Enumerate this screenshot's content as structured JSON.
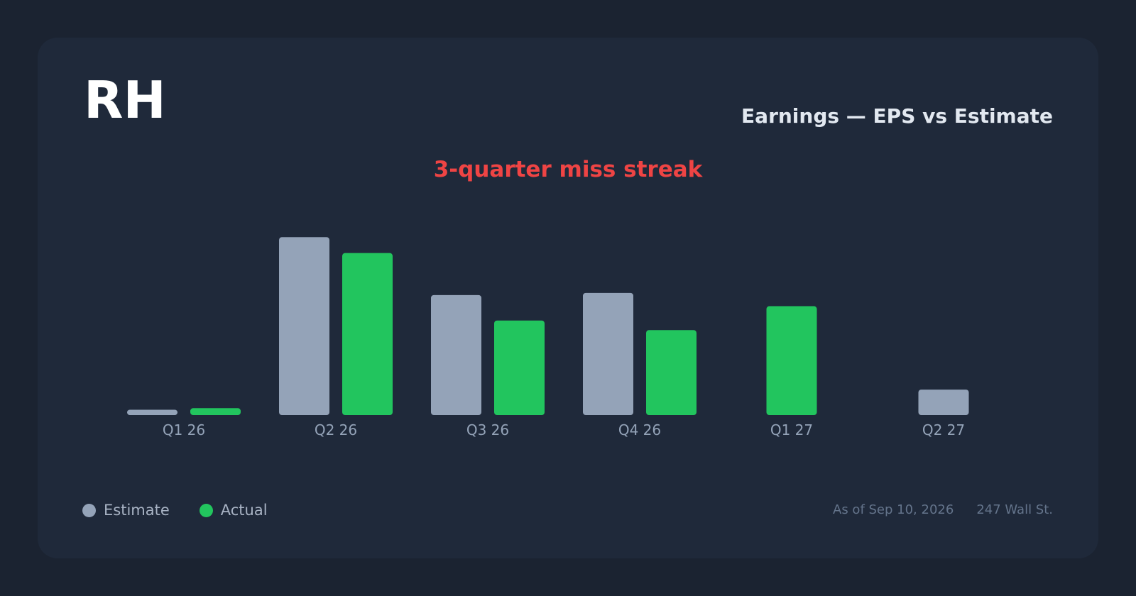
{
  "header": {
    "ticker": "RH",
    "title": "Earnings — EPS vs Estimate",
    "annotation": "3-quarter miss streak"
  },
  "legend": {
    "estimate_label": "Estimate",
    "actual_label": "Actual"
  },
  "footer": {
    "as_of": "As of Sep 10, 2026",
    "source": "247 Wall St."
  },
  "colors": {
    "estimate": "#94a3b8",
    "actual": "#22c55e",
    "annotation": "#ef4444"
  },
  "chart_data": {
    "type": "bar",
    "title": "Earnings — EPS vs Estimate",
    "xlabel": "",
    "ylabel": "",
    "categories": [
      "Q1 26",
      "Q2 26",
      "Q3 26",
      "Q4 26",
      "Q1 27",
      "Q2 27"
    ],
    "series": [
      {
        "name": "Estimate",
        "values": [
          0.1,
          3.35,
          2.26,
          2.3,
          null,
          0.48
        ]
      },
      {
        "name": "Actual",
        "values": [
          0.13,
          3.05,
          1.78,
          1.6,
          2.05,
          null
        ]
      }
    ],
    "ylim": [
      0,
      3.5
    ],
    "grid": false,
    "legend_position": "bottom-left"
  }
}
